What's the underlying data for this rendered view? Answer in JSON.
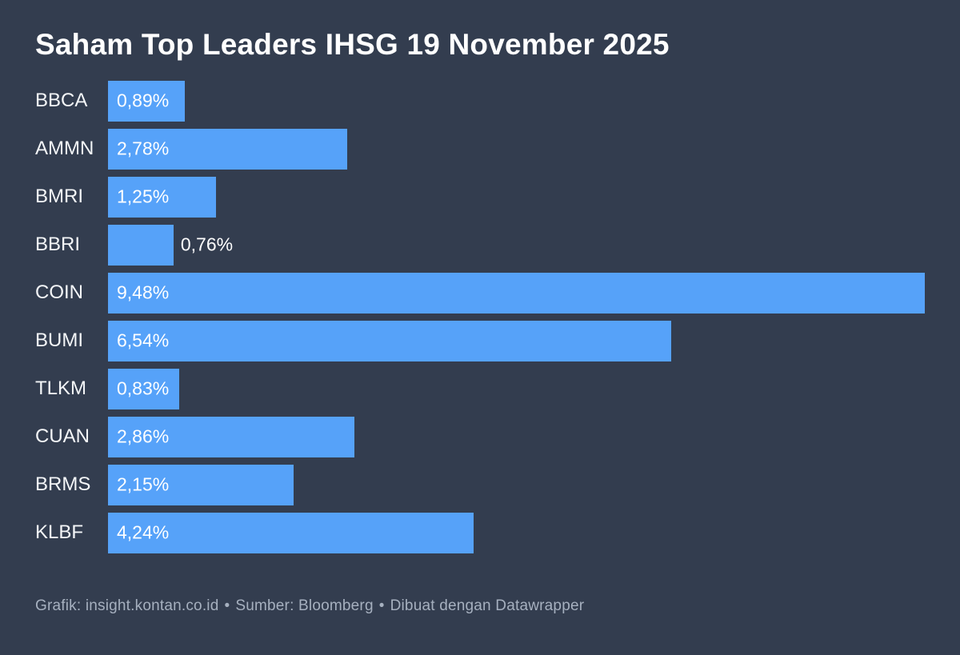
{
  "title": "Saham Top Leaders IHSG 19 November 2025",
  "chart_data": {
    "type": "bar",
    "orientation": "horizontal",
    "title": "Saham Top Leaders IHSG 19 November 2025",
    "categories": [
      "BBCA",
      "AMMN",
      "BMRI",
      "BBRI",
      "COIN",
      "BUMI",
      "TLKM",
      "CUAN",
      "BRMS",
      "KLBF"
    ],
    "values": [
      0.89,
      2.78,
      1.25,
      0.76,
      9.48,
      6.54,
      0.83,
      2.86,
      2.15,
      4.24
    ],
    "value_labels": [
      "0,89%",
      "2,78%",
      "1,25%",
      "0,76%",
      "9,48%",
      "6,54%",
      "0,83%",
      "2,86%",
      "2,15%",
      "4,24%"
    ],
    "unit": "%",
    "xlim": [
      0,
      9.48
    ],
    "grid": false,
    "legend": false,
    "xlabel": "",
    "ylabel": ""
  },
  "footer": {
    "credit": "Grafik: insight.kontan.co.id",
    "source": "Sumber: Bloomberg",
    "tool": "Dibuat dengan Datawrapper",
    "separator": "•"
  },
  "colors": {
    "background": "#333d4f",
    "bar": "#56a2f9",
    "title_text": "#ffffff",
    "category_text": "#f4f6f8",
    "value_text": "#ffffff",
    "footer_text": "#a6b0bf"
  }
}
